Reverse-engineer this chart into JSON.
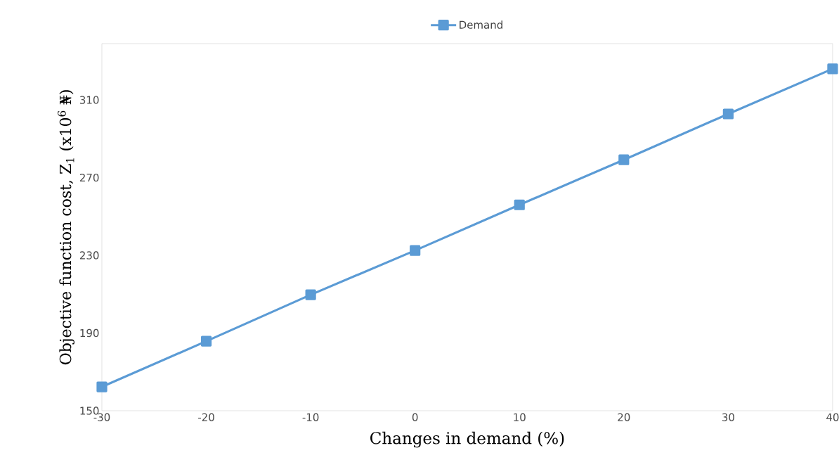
{
  "chart_data": {
    "type": "line",
    "xlabel": "Changes  in demand (%)",
    "ylabel": "Objective function cost, Z$_{1}$ (x10$^{6}$ ₦)",
    "x": [
      -30,
      -20,
      -10,
      0,
      10,
      20,
      30,
      40
    ],
    "series": [
      {
        "name": "Demand",
        "color": "#5b9bd5",
        "values": [
          162.3,
          185.8,
          209.7,
          232.5,
          256,
          279.2,
          302.8,
          326
        ]
      }
    ],
    "xlim": [
      -30,
      40
    ],
    "xticks": [
      -30,
      -20,
      -10,
      0,
      10,
      20,
      30,
      40
    ],
    "ylim": [
      150,
      339
    ],
    "yticks": [
      150,
      190,
      230,
      270,
      310
    ],
    "legend": "top",
    "marker": "square",
    "line_style": "solid",
    "grid": false
  }
}
